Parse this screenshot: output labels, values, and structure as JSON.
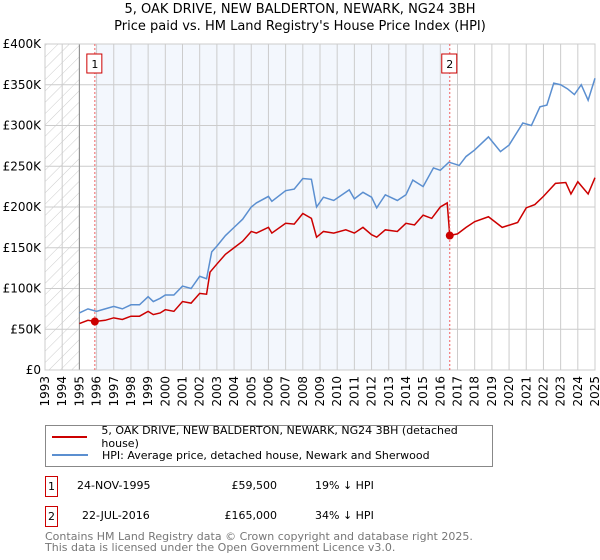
{
  "title": "5, OAK DRIVE, NEW BALDERTON, NEWARK, NG24 3BH",
  "subtitle": "Price paid vs. HM Land Registry's House Price Index (HPI)",
  "chart_data": {
    "type": "line",
    "title": "5, OAK DRIVE, NEW BALDERTON, NEWARK, NG24 3BH",
    "subtitle": "Price paid vs. HM Land Registry's House Price Index (HPI)",
    "xlim": [
      1993,
      2025
    ],
    "ylim": [
      0,
      400000
    ],
    "xticks": [
      "1993",
      "1994",
      "1995",
      "1996",
      "1997",
      "1998",
      "1999",
      "2000",
      "2001",
      "2002",
      "2003",
      "2004",
      "2005",
      "2006",
      "2007",
      "2008",
      "2009",
      "2010",
      "2011",
      "2012",
      "2013",
      "2014",
      "2015",
      "2016",
      "2017",
      "2018",
      "2019",
      "2020",
      "2021",
      "2022",
      "2023",
      "2024",
      "2025"
    ],
    "yticks": [
      {
        "v": 0,
        "l": "£0"
      },
      {
        "v": 50000,
        "l": "£50K"
      },
      {
        "v": 100000,
        "l": "£100K"
      },
      {
        "v": 150000,
        "l": "£150K"
      },
      {
        "v": 200000,
        "l": "£200K"
      },
      {
        "v": 250000,
        "l": "£250K"
      },
      {
        "v": 300000,
        "l": "£300K"
      },
      {
        "v": 350000,
        "l": "£350K"
      },
      {
        "v": 400000,
        "l": "£400K"
      }
    ],
    "grid": true,
    "hatched_range": [
      1993,
      1995
    ],
    "series": [
      {
        "name": "5, OAK DRIVE, NEW BALDERTON, NEWARK, NG24 3BH (detached house)",
        "color": "#cc0000",
        "x": [
          1995,
          1995.5,
          1995.9,
          1996.5,
          1997,
          1997.5,
          1998,
          1998.5,
          1999,
          1999.3,
          1999.7,
          2000,
          2000.5,
          2001,
          2001.5,
          2002,
          2002.4,
          2002.6,
          2003,
          2003.5,
          2004,
          2004.5,
          2005,
          2005.3,
          2006,
          2006.2,
          2007,
          2007.5,
          2008,
          2008.5,
          2008.8,
          2009.2,
          2009.8,
          2010.5,
          2011,
          2011.5,
          2012,
          2012.3,
          2012.8,
          2013.5,
          2014,
          2014.5,
          2015,
          2015.5,
          2016,
          2016.4,
          2016.55,
          2017,
          2017.5,
          2018,
          2018.8,
          2019.6,
          2020.5,
          2021,
          2021.5,
          2022,
          2022.7,
          2023.3,
          2023.6,
          2024,
          2024.6,
          2025
        ],
        "y": [
          57000,
          61000,
          59500,
          61000,
          64000,
          62000,
          66000,
          66000,
          72000,
          68000,
          70000,
          74000,
          72000,
          84000,
          82000,
          94000,
          93000,
          120000,
          130000,
          142000,
          150000,
          158000,
          170000,
          168000,
          175000,
          168000,
          180000,
          179000,
          192000,
          186000,
          163000,
          170000,
          168000,
          172000,
          168000,
          175000,
          166000,
          163000,
          172000,
          170000,
          180000,
          178000,
          190000,
          186000,
          200000,
          205000,
          165000,
          167000,
          175000,
          182000,
          188000,
          175000,
          181000,
          199000,
          203000,
          213000,
          229000,
          230000,
          216000,
          231000,
          216000,
          236000
        ]
      },
      {
        "name": "HPI: Average price, detached house, Newark and Sherwood",
        "color": "#5b8fd0",
        "x": [
          1995,
          1995.5,
          1996,
          1996.5,
          1997,
          1997.5,
          1998,
          1998.5,
          1999,
          1999.3,
          1999.7,
          2000,
          2000.5,
          2001,
          2001.5,
          2002,
          2002.4,
          2002.7,
          2003,
          2003.5,
          2004,
          2004.5,
          2005,
          2005.3,
          2006,
          2006.2,
          2007,
          2007.5,
          2008,
          2008.5,
          2008.8,
          2009.2,
          2009.8,
          2010.7,
          2011,
          2011.5,
          2012,
          2012.3,
          2012.8,
          2013.5,
          2014,
          2014.4,
          2015,
          2015.6,
          2016,
          2016.5,
          2017.1,
          2017.5,
          2018,
          2018.8,
          2019.5,
          2020,
          2020.8,
          2021.3,
          2021.8,
          2022.2,
          2022.6,
          2023,
          2023.4,
          2023.8,
          2024.2,
          2024.6,
          2025
        ],
        "y": [
          70000,
          75000,
          72000,
          75000,
          78000,
          75000,
          80000,
          80000,
          90000,
          84000,
          88000,
          92000,
          92000,
          103000,
          100000,
          115000,
          112000,
          145000,
          152000,
          165000,
          175000,
          185000,
          200000,
          205000,
          213000,
          207000,
          220000,
          222000,
          235000,
          234000,
          200000,
          212000,
          208000,
          221000,
          210000,
          218000,
          212000,
          199000,
          215000,
          208000,
          215000,
          233000,
          225000,
          248000,
          245000,
          255000,
          251000,
          262000,
          270000,
          286000,
          268000,
          276000,
          303000,
          300000,
          323000,
          325000,
          352000,
          350000,
          345000,
          338000,
          350000,
          331000,
          358000
        ]
      }
    ],
    "sales": [
      {
        "n": "1",
        "x": 1995.9,
        "y": 59500
      },
      {
        "n": "2",
        "x": 2016.55,
        "y": 165000
      }
    ]
  },
  "legend": {
    "red": "5, OAK DRIVE, NEW BALDERTON, NEWARK, NG24 3BH (detached house)",
    "blue": "HPI: Average price, detached house, Newark and Sherwood"
  },
  "sales": [
    {
      "n": "1",
      "date": "24-NOV-1995",
      "price": "£59,500",
      "diff": "19% ↓ HPI"
    },
    {
      "n": "2",
      "date": "22-JUL-2016",
      "price": "£165,000",
      "diff": "34% ↓ HPI"
    }
  ],
  "footer": {
    "line1": "Contains HM Land Registry data © Crown copyright and database right 2025.",
    "line2": "This data is licensed under the Open Government Licence v3.0."
  }
}
